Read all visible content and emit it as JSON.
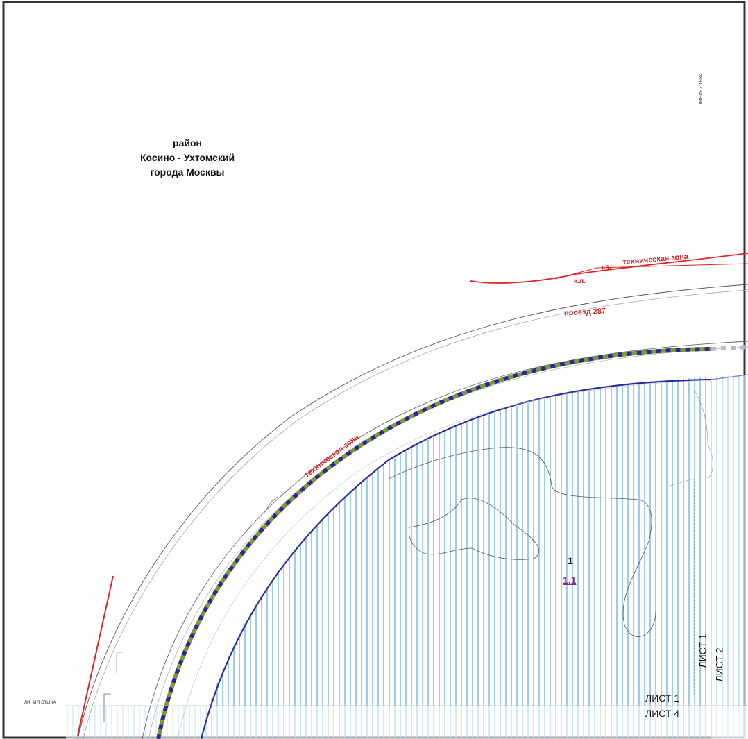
{
  "map": {
    "district": {
      "line1": "район",
      "line2": "Косино - Ухтомский",
      "line3": "города Москвы"
    },
    "labels": {
      "technical_zone_top": "техническая зона",
      "tz_abbr": "т.з.",
      "kl_abbr": "к.л.",
      "proezd": "проезд 287",
      "technical_zone_arc": "техническая зона",
      "junction_left": "ЛИНИЯ СТЫКА",
      "junction_top_right": "ЛИНИЯ СТЫКА"
    },
    "parcel": {
      "number": "1",
      "sub_number": "1.1"
    },
    "sheets": {
      "sheet1_vertical": "ЛИСТ 1",
      "sheet2_vertical": "ЛИСТ 2",
      "sheet1_horizontal": "ЛИСТ 1",
      "sheet4_horizontal": "ЛИСТ 4"
    },
    "colors": {
      "red_line": "#e02424",
      "hatch": "#5aaed8",
      "boundary_blue": "#2a2a9a",
      "dash_navy": "#2e2a8c",
      "dash_green": "#7a9a3a",
      "parcel_number": "#8a2a9a",
      "frame": "#333333"
    }
  }
}
